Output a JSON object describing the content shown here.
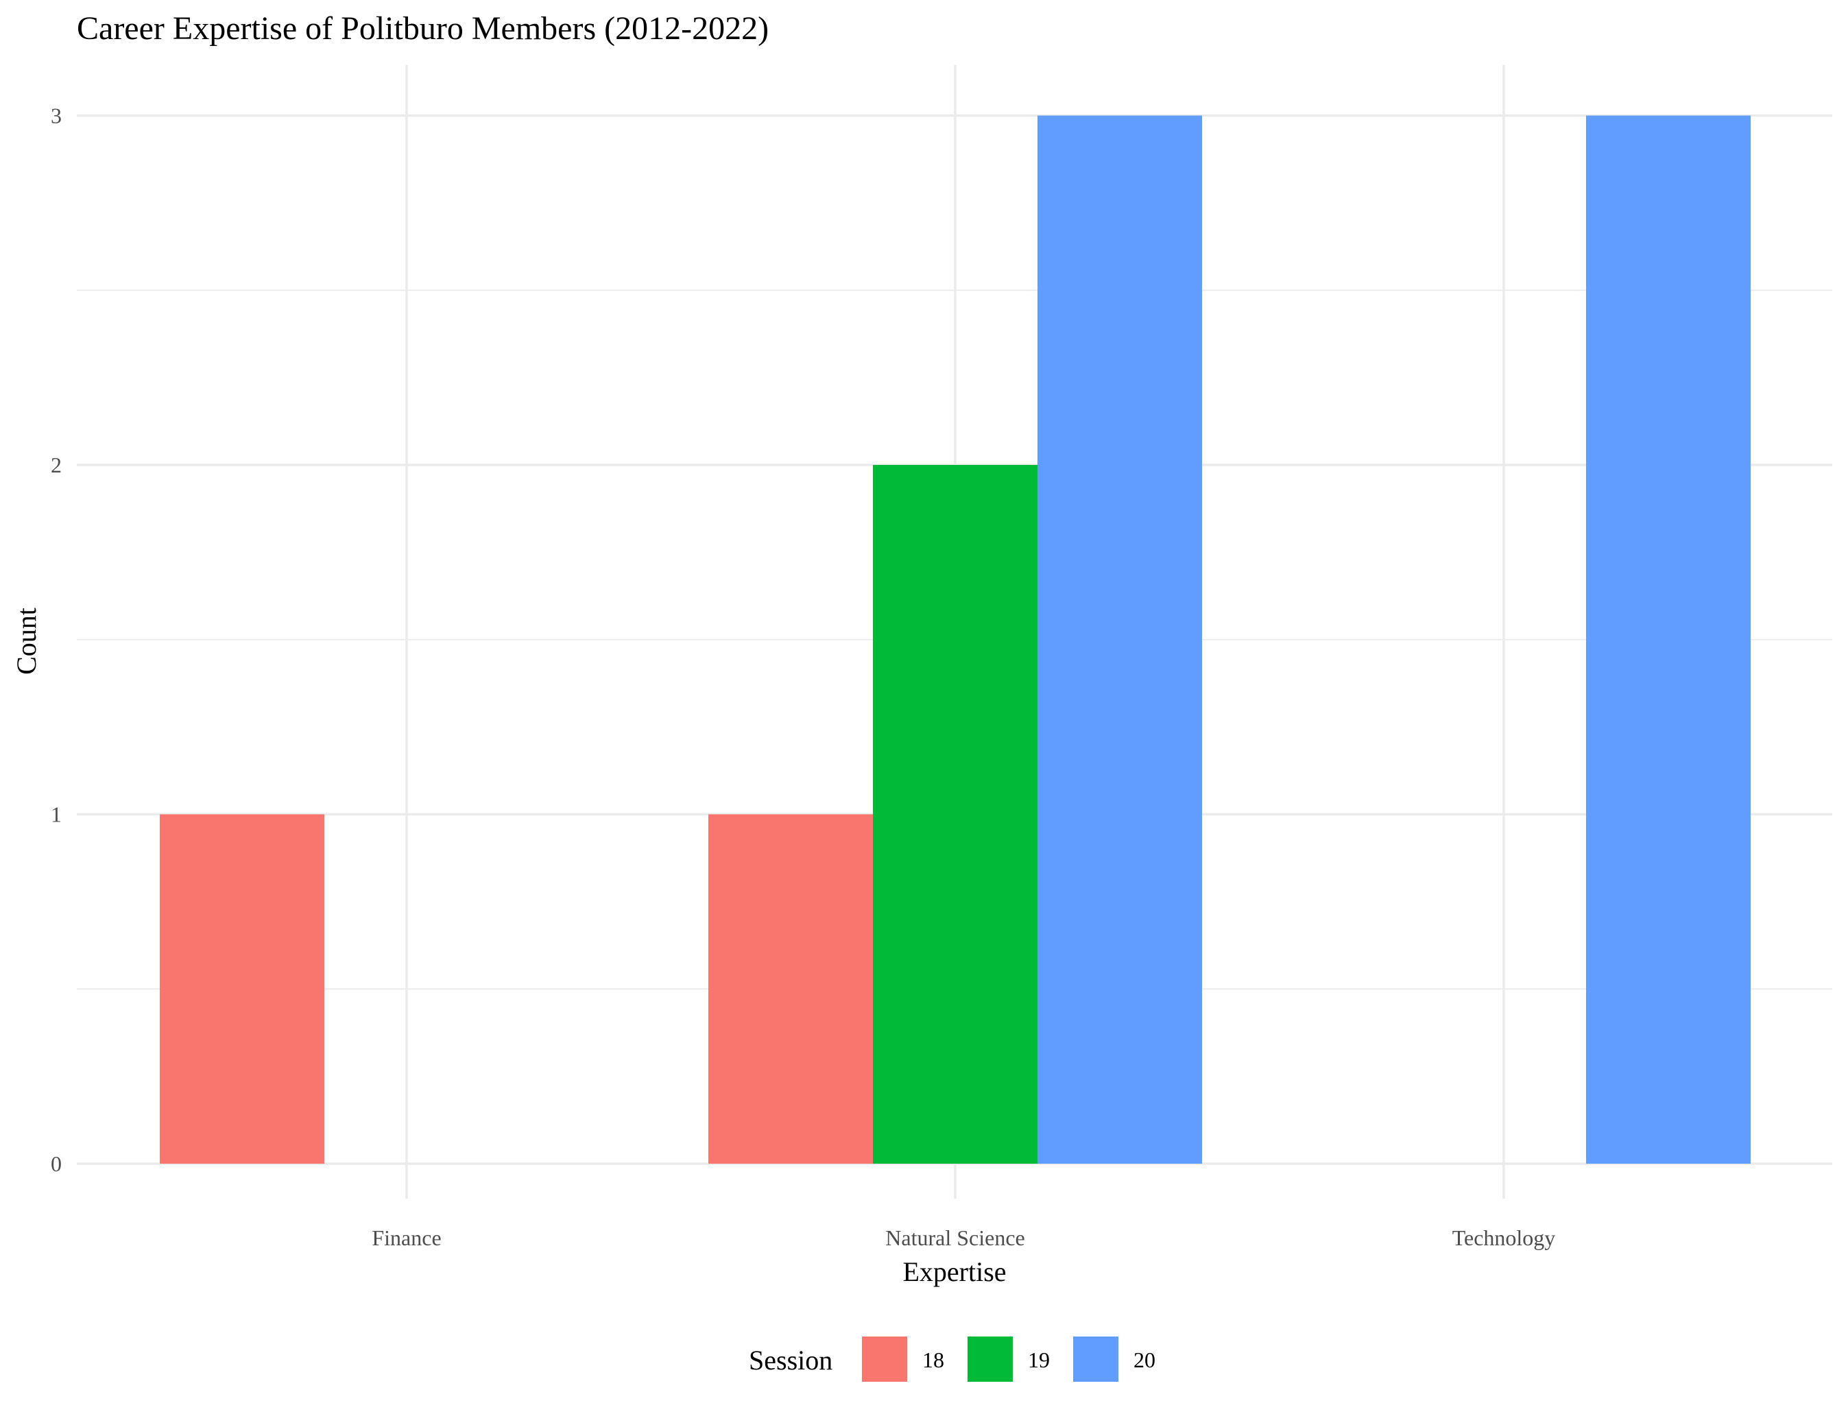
{
  "chart_data": {
    "type": "bar",
    "title": "Career Expertise of Politburo Members (2012-2022)",
    "xlabel": "Expertise",
    "ylabel": "Count",
    "categories": [
      "Finance",
      "Natural Science",
      "Technology"
    ],
    "series": [
      {
        "name": "18",
        "color": "#F8766D",
        "values": [
          1,
          1,
          0
        ]
      },
      {
        "name": "19",
        "color": "#00BA38",
        "values": [
          0,
          2,
          0
        ]
      },
      {
        "name": "20",
        "color": "#619CFF",
        "values": [
          0,
          3,
          3
        ]
      }
    ],
    "ylim": [
      -0.15,
      3.15
    ],
    "yticks": [
      0,
      1,
      2,
      3
    ],
    "grid": true,
    "legend": {
      "title": "Session",
      "position": "bottom"
    }
  }
}
